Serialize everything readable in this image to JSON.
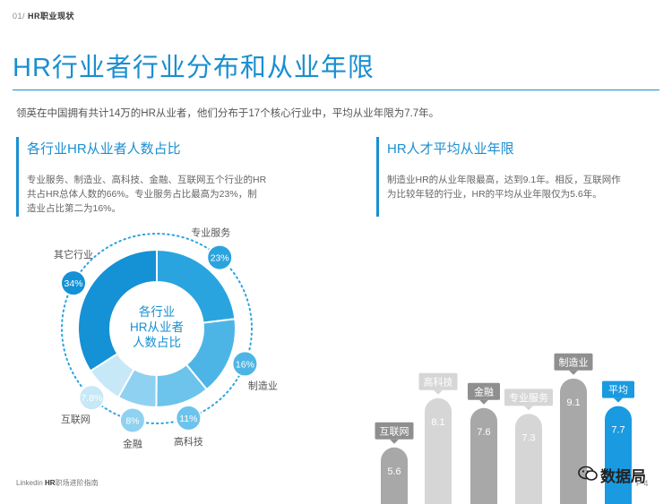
{
  "header": {
    "page": "01/",
    "section": "HR职业现状"
  },
  "title": "HR行业者行业分布和从业年限",
  "intro": "领英在中国拥有共计14万的HR从业者，他们分布于17个核心行业中，平均从业年限为7.7年。",
  "left_panel": {
    "title": "各行业HR从业者人数占比",
    "desc_line1": "专业服务、制造业、高科技、金融、互联网五个行业的HR",
    "desc_line2": "共占HR总体人数的66%。专业服务占比最高为23%，制",
    "desc_line3": "造业占比第二为16%。"
  },
  "right_panel": {
    "title": "HR人才平均从业年限",
    "desc_line1": "制造业HR的从业年限最高，达到9.1年。相反，互联网作",
    "desc_line2": "为比较年轻的行业，HR的平均从业年限仅为5.6年。"
  },
  "chart_data": [
    {
      "type": "pie",
      "center_label": [
        "各行业",
        "HR从业者",
        "人数占比"
      ],
      "slices": [
        {
          "label": "专业服务",
          "value": 23,
          "value_label": "23%",
          "color": "#2aa4df"
        },
        {
          "label": "制造业",
          "value": 16,
          "value_label": "16%",
          "color": "#4db5e6"
        },
        {
          "label": "高科技",
          "value": 11,
          "value_label": "11%",
          "color": "#6cc3ec"
        },
        {
          "label": "金融",
          "value": 8,
          "value_label": "8%",
          "color": "#8fd1f1"
        },
        {
          "label": "互联网",
          "value": 7.8,
          "value_label": "7.8%",
          "color": "#c7e8f7"
        },
        {
          "label": "其它行业",
          "value": 34,
          "value_label": "34%",
          "color": "#1591d5"
        }
      ]
    },
    {
      "type": "bar",
      "categories": [
        "互联网",
        "高科技",
        "金融",
        "专业服务",
        "制造业",
        "平均"
      ],
      "values": [
        5.6,
        8.1,
        7.6,
        7.3,
        9.1,
        7.7
      ],
      "value_labels": [
        "5.6",
        "8.1",
        "7.6",
        "7.3",
        "9.1",
        "7.7"
      ],
      "colors": [
        "#a8a8a8",
        "#d6d6d6",
        "#a8a8a8",
        "#d6d6d6",
        "#a8a8a8",
        "#1a9ae0"
      ]
    }
  ],
  "footer": {
    "brand_a": "Linkedin ",
    "brand_b": "HR",
    "brand_c": "职场进阶指南",
    "page": "P 4"
  },
  "watermark": {
    "text": "数据局",
    "icon": "wechat-icon"
  }
}
